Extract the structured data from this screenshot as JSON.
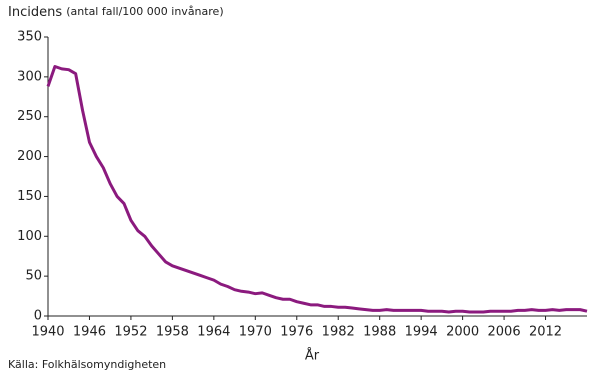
{
  "chart_data": {
    "type": "line",
    "title": "Incidens",
    "subtitle": "(antal fall/100 000 invånare)",
    "x_label": "År",
    "source": "Källa: Folkhälsomyndigheten",
    "x": [
      1940,
      1941,
      1942,
      1943,
      1944,
      1945,
      1946,
      1947,
      1948,
      1949,
      1950,
      1951,
      1952,
      1953,
      1954,
      1955,
      1956,
      1957,
      1958,
      1959,
      1960,
      1961,
      1962,
      1963,
      1964,
      1965,
      1966,
      1967,
      1968,
      1969,
      1970,
      1971,
      1972,
      1973,
      1974,
      1975,
      1976,
      1977,
      1978,
      1979,
      1980,
      1981,
      1982,
      1983,
      1984,
      1985,
      1986,
      1987,
      1988,
      1989,
      1990,
      1991,
      1992,
      1993,
      1994,
      1995,
      1996,
      1997,
      1998,
      1999,
      2000,
      2001,
      2002,
      2003,
      2004,
      2005,
      2006,
      2007,
      2008,
      2009,
      2010,
      2011,
      2012,
      2013,
      2014,
      2015,
      2016,
      2017,
      2018
    ],
    "series": [
      {
        "name": "Incidens",
        "color": "#8b1a7e",
        "values": [
          288,
          313,
          310,
          309,
          304,
          258,
          218,
          200,
          186,
          166,
          150,
          141,
          120,
          107,
          100,
          88,
          78,
          68,
          63,
          60,
          57,
          54,
          51,
          48,
          45,
          40,
          37,
          33,
          31,
          30,
          28,
          29,
          26,
          23,
          21,
          21,
          18,
          16,
          14,
          14,
          12,
          12,
          11,
          11,
          10,
          9,
          8,
          7,
          7,
          8,
          7,
          7,
          7,
          7,
          7,
          6,
          6,
          6,
          5,
          6,
          6,
          5,
          5,
          5,
          6,
          6,
          6,
          6,
          7,
          7,
          8,
          7,
          7,
          8,
          7,
          8,
          8,
          8,
          6
        ]
      }
    ],
    "xlim": [
      1940,
      2018
    ],
    "xticks": [
      1940,
      1946,
      1952,
      1958,
      1964,
      1970,
      1976,
      1982,
      1988,
      1994,
      2000,
      2006,
      2012
    ],
    "ylim": [
      0,
      350
    ],
    "yticks": [
      0,
      50,
      100,
      150,
      200,
      250,
      300,
      350
    ]
  }
}
